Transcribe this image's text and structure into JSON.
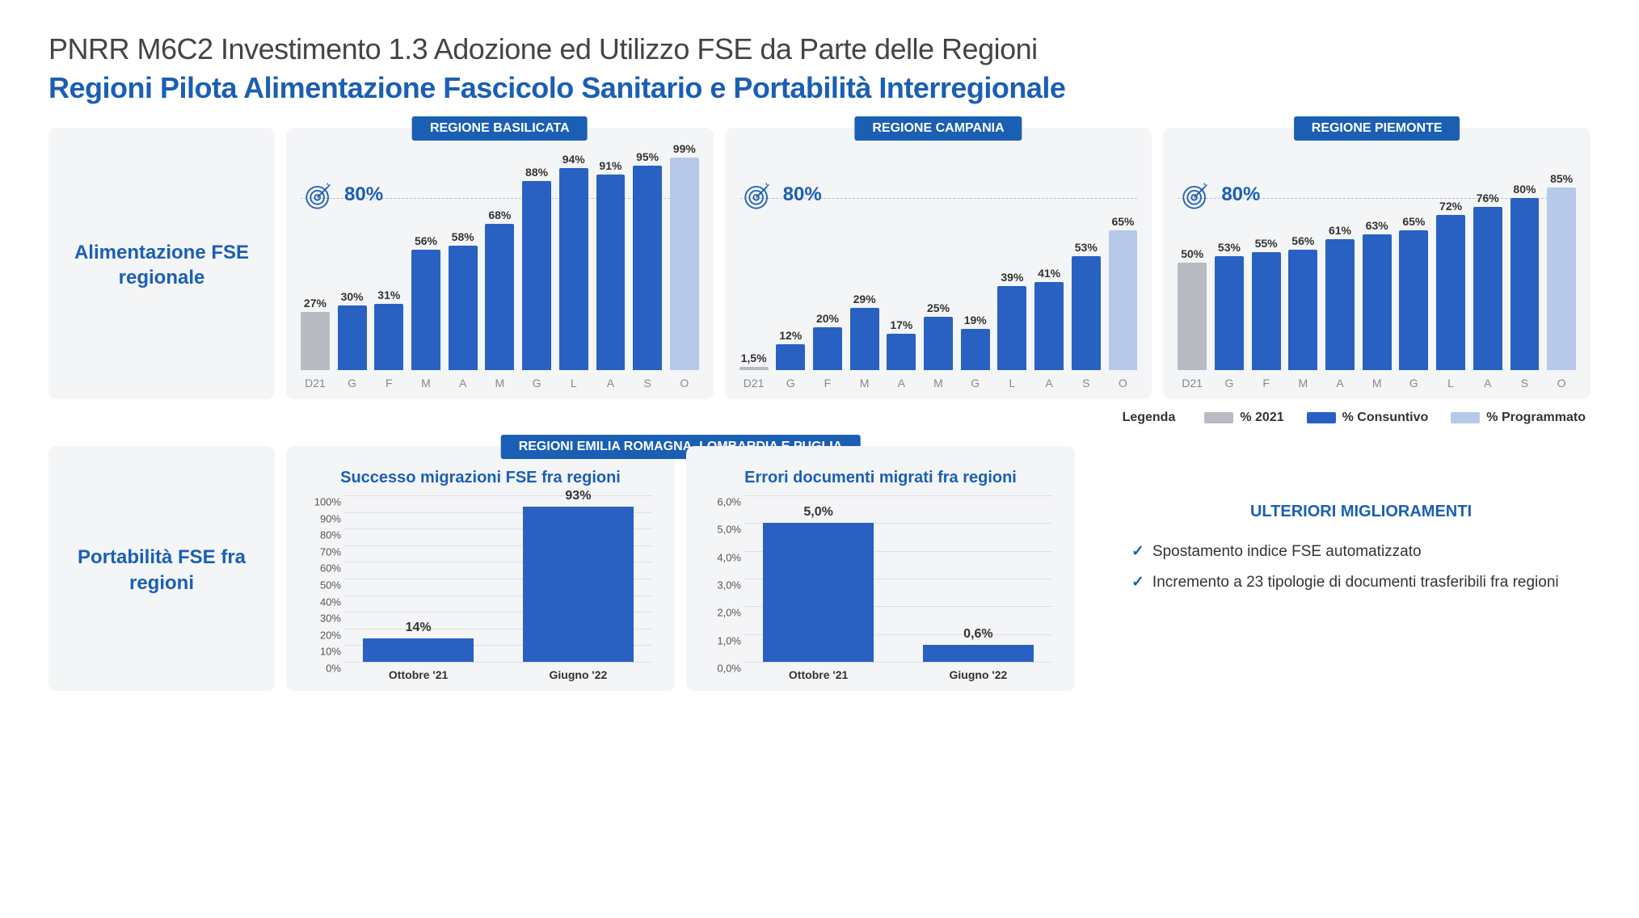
{
  "header": {
    "title": "PNRR M6C2 Investimento 1.3 Adozione ed Utilizzo FSE da Parte delle Regioni",
    "subtitle": "Regioni Pilota Alimentazione Fascicolo Sanitario e Portabilità Interregionale"
  },
  "side_labels": {
    "row1": "Alimentazione FSE regionale",
    "row2": "Portabilità FSE fra regioni"
  },
  "colors": {
    "baseline": "#b8bcc2",
    "consuntivo": "#2861c2",
    "programmato": "#b7c9e8",
    "panel_bg": "#f4f5f7",
    "accent": "#1a5fb4"
  },
  "row1_common": {
    "target_label": "80%",
    "target_value": 80,
    "ymax": 100,
    "categories": [
      "D21",
      "G",
      "F",
      "M",
      "A",
      "M",
      "G",
      "L",
      "A",
      "S",
      "O"
    ]
  },
  "regions": [
    {
      "badge": "REGIONE BASILICATA",
      "values": [
        27,
        30,
        31,
        56,
        58,
        68,
        88,
        94,
        91,
        95,
        99
      ],
      "value_labels": [
        "27%",
        "30%",
        "31%",
        "56%",
        "58%",
        "68%",
        "88%",
        "94%",
        "91%",
        "95%",
        "99%"
      ],
      "series": [
        "baseline",
        "consuntivo",
        "consuntivo",
        "consuntivo",
        "consuntivo",
        "consuntivo",
        "consuntivo",
        "consuntivo",
        "consuntivo",
        "consuntivo",
        "programmato"
      ]
    },
    {
      "badge": "REGIONE CAMPANIA",
      "values": [
        1.5,
        12,
        20,
        29,
        17,
        25,
        19,
        39,
        41,
        53,
        65
      ],
      "value_labels": [
        "1,5%",
        "12%",
        "20%",
        "29%",
        "17%",
        "25%",
        "19%",
        "39%",
        "41%",
        "53%",
        "65%"
      ],
      "series": [
        "baseline",
        "consuntivo",
        "consuntivo",
        "consuntivo",
        "consuntivo",
        "consuntivo",
        "consuntivo",
        "consuntivo",
        "consuntivo",
        "consuntivo",
        "programmato"
      ]
    },
    {
      "badge": "REGIONE PIEMONTE",
      "values": [
        50,
        53,
        55,
        56,
        61,
        63,
        65,
        72,
        76,
        80,
        85
      ],
      "value_labels": [
        "50%",
        "53%",
        "55%",
        "56%",
        "61%",
        "63%",
        "65%",
        "72%",
        "76%",
        "80%",
        "85%"
      ],
      "series": [
        "baseline",
        "consuntivo",
        "consuntivo",
        "consuntivo",
        "consuntivo",
        "consuntivo",
        "consuntivo",
        "consuntivo",
        "consuntivo",
        "consuntivo",
        "programmato"
      ]
    }
  ],
  "legend": {
    "lead": "Legenda",
    "items": [
      {
        "label": "% 2021",
        "color": "#b8bcc2"
      },
      {
        "label": "% Consuntivo",
        "color": "#2861c2"
      },
      {
        "label": "% Programmato",
        "color": "#b7c9e8"
      }
    ]
  },
  "row2_badge": "REGIONI EMILIA ROMAGNA, LOMBARDIA E PUGLIA",
  "mini_charts": [
    {
      "title": "Successo migrazioni FSE fra regioni",
      "ymax": 100,
      "ystep": 10,
      "suffix": "%",
      "decimals": 0,
      "bars": [
        {
          "label": "Ottobre '21",
          "value": 14,
          "value_label": "14%"
        },
        {
          "label": "Giugno '22",
          "value": 93,
          "value_label": "93%"
        }
      ]
    },
    {
      "title": "Errori documenti migrati fra regioni",
      "ymax": 6,
      "ystep": 1,
      "suffix": "%",
      "decimals": 1,
      "bars": [
        {
          "label": "Ottobre '21",
          "value": 5.0,
          "value_label": "5,0%"
        },
        {
          "label": "Giugno '22",
          "value": 0.6,
          "value_label": "0,6%"
        }
      ]
    }
  ],
  "improvements": {
    "title": "ULTERIORI MIGLIORAMENTI",
    "items": [
      "Spostamento indice FSE automatizzato",
      "Incremento a 23 tipologie di documenti trasferibili fra regioni"
    ]
  }
}
